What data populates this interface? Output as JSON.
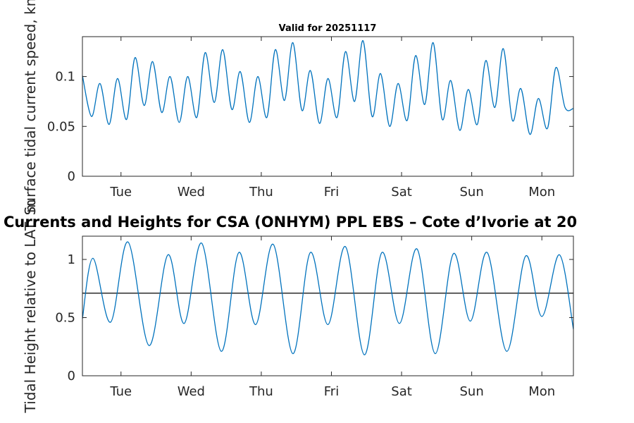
{
  "figure": {
    "main_title": "Currents and Heights for CSA (ONHYM) PPL EBS  – Cote d’Ivorie at 20"
  },
  "chart_data": [
    {
      "type": "line",
      "title": "Valid for 20251117",
      "xlabel": "",
      "ylabel": "Surface tidal current speed, kn",
      "xlim": [
        0.45,
        7.45
      ],
      "ylim": [
        0,
        0.14
      ],
      "xticks": [
        1,
        2,
        3,
        4,
        5,
        6,
        7
      ],
      "xtick_labels": [
        "Tue",
        "Wed",
        "Thu",
        "Fri",
        "Sat",
        "Sun",
        "Mon"
      ],
      "yticks": [
        0,
        0.05,
        0.1
      ],
      "ytick_labels": [
        "0",
        "0.05",
        "0.1"
      ],
      "grid": false,
      "series": [
        {
          "name": "Surface tidal current speed",
          "color": "#0072bd",
          "points": [
            [
              0.45,
              0.101
            ],
            [
              0.58,
              0.06
            ],
            [
              0.7,
              0.093
            ],
            [
              0.83,
              0.052
            ],
            [
              0.95,
              0.098
            ],
            [
              1.08,
              0.057
            ],
            [
              1.2,
              0.119
            ],
            [
              1.33,
              0.071
            ],
            [
              1.45,
              0.115
            ],
            [
              1.58,
              0.064
            ],
            [
              1.7,
              0.1
            ],
            [
              1.83,
              0.054
            ],
            [
              1.95,
              0.1
            ],
            [
              2.08,
              0.059
            ],
            [
              2.2,
              0.124
            ],
            [
              2.33,
              0.074
            ],
            [
              2.45,
              0.127
            ],
            [
              2.58,
              0.067
            ],
            [
              2.7,
              0.105
            ],
            [
              2.83,
              0.054
            ],
            [
              2.95,
              0.1
            ],
            [
              3.08,
              0.059
            ],
            [
              3.2,
              0.127
            ],
            [
              3.33,
              0.076
            ],
            [
              3.45,
              0.134
            ],
            [
              3.58,
              0.066
            ],
            [
              3.7,
              0.106
            ],
            [
              3.83,
              0.053
            ],
            [
              3.95,
              0.098
            ],
            [
              4.08,
              0.059
            ],
            [
              4.2,
              0.125
            ],
            [
              4.33,
              0.075
            ],
            [
              4.45,
              0.136
            ],
            [
              4.58,
              0.06
            ],
            [
              4.7,
              0.103
            ],
            [
              4.83,
              0.05
            ],
            [
              4.95,
              0.093
            ],
            [
              5.08,
              0.056
            ],
            [
              5.2,
              0.121
            ],
            [
              5.33,
              0.072
            ],
            [
              5.45,
              0.134
            ],
            [
              5.58,
              0.057
            ],
            [
              5.7,
              0.096
            ],
            [
              5.83,
              0.046
            ],
            [
              5.95,
              0.087
            ],
            [
              6.08,
              0.052
            ],
            [
              6.2,
              0.116
            ],
            [
              6.33,
              0.069
            ],
            [
              6.45,
              0.128
            ],
            [
              6.58,
              0.056
            ],
            [
              6.7,
              0.088
            ],
            [
              6.83,
              0.042
            ],
            [
              6.95,
              0.078
            ],
            [
              7.08,
              0.048
            ],
            [
              7.2,
              0.109
            ],
            [
              7.33,
              0.069
            ],
            [
              7.45,
              0.068
            ]
          ]
        }
      ]
    },
    {
      "type": "line",
      "title": "",
      "xlabel": "",
      "ylabel": "Tidal Height relative to LAT, m",
      "xlim": [
        0.45,
        7.45
      ],
      "ylim": [
        0,
        1.2
      ],
      "xticks": [
        1,
        2,
        3,
        4,
        5,
        6,
        7
      ],
      "xtick_labels": [
        "Tue",
        "Wed",
        "Thu",
        "Fri",
        "Sat",
        "Sun",
        "Mon"
      ],
      "yticks": [
        0,
        0.5,
        1
      ],
      "ytick_labels": [
        "0",
        "0.5",
        "1"
      ],
      "grid": false,
      "reference_line": {
        "y": 0.71,
        "color": "#000000"
      },
      "series": [
        {
          "name": "Tidal height",
          "color": "#0072bd",
          "points": [
            [
              0.45,
              0.49
            ],
            [
              0.6,
              1.01
            ],
            [
              0.85,
              0.46
            ],
            [
              1.1,
              1.15
            ],
            [
              1.4,
              0.26
            ],
            [
              1.67,
              1.04
            ],
            [
              1.9,
              0.45
            ],
            [
              2.15,
              1.14
            ],
            [
              2.43,
              0.21
            ],
            [
              2.68,
              1.06
            ],
            [
              2.92,
              0.44
            ],
            [
              3.17,
              1.13
            ],
            [
              3.45,
              0.19
            ],
            [
              3.7,
              1.06
            ],
            [
              3.95,
              0.44
            ],
            [
              4.2,
              1.11
            ],
            [
              4.47,
              0.18
            ],
            [
              4.72,
              1.06
            ],
            [
              4.97,
              0.45
            ],
            [
              5.22,
              1.09
            ],
            [
              5.48,
              0.19
            ],
            [
              5.74,
              1.05
            ],
            [
              5.98,
              0.47
            ],
            [
              6.22,
              1.06
            ],
            [
              6.5,
              0.21
            ],
            [
              6.77,
              1.03
            ],
            [
              7.0,
              0.51
            ],
            [
              7.25,
              1.04
            ],
            [
              7.45,
              0.4
            ]
          ]
        }
      ]
    }
  ]
}
